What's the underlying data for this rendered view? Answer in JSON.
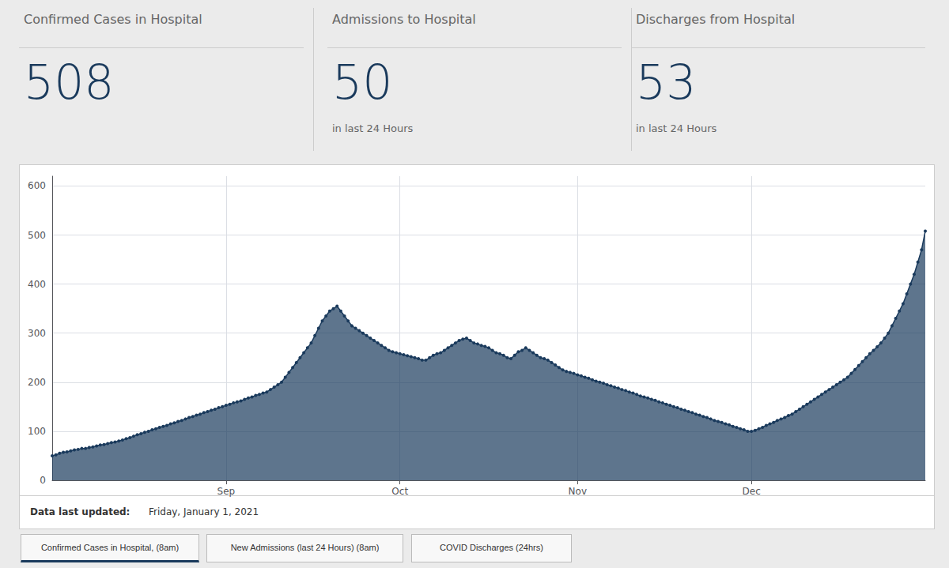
{
  "chart_data": {
    "type": "area",
    "color": "#1a3a5c",
    "marker": "circle",
    "grid": true,
    "ylim": [
      0,
      620
    ],
    "yticks": [
      0,
      100,
      200,
      300,
      400,
      500,
      600
    ],
    "categories": [
      null,
      null,
      null,
      null,
      null,
      null,
      null,
      null,
      null,
      null,
      null,
      null,
      null,
      null,
      null,
      null,
      null,
      null,
      null,
      null,
      null,
      null,
      null,
      null,
      null,
      null,
      null,
      null,
      null,
      null,
      null,
      null,
      null,
      null,
      null,
      null,
      null,
      null,
      null,
      null,
      null,
      null,
      null,
      null,
      null,
      null,
      null,
      "Sep",
      null,
      null,
      null,
      null,
      null,
      null,
      null,
      null,
      null,
      null,
      null,
      null,
      null,
      null,
      null,
      null,
      null,
      null,
      null,
      null,
      null,
      null,
      null,
      null,
      null,
      null,
      null,
      null,
      null,
      null,
      null,
      null,
      null,
      null,
      null,
      null,
      null,
      null,
      null,
      null,
      null,
      null,
      null,
      null,
      null,
      null,
      "Oct",
      null,
      null,
      null,
      null,
      null,
      null,
      null,
      null,
      null,
      null,
      null,
      null,
      null,
      null,
      null,
      null,
      null,
      null,
      null,
      null,
      null,
      null,
      null,
      null,
      null,
      null,
      null,
      null,
      null,
      null,
      null,
      null,
      null,
      null,
      null,
      null,
      null,
      null,
      null,
      null,
      null,
      null,
      null,
      null,
      null,
      null,
      null,
      "Nov",
      null,
      null,
      null,
      null,
      null,
      null,
      null,
      null,
      null,
      null,
      null,
      null,
      null,
      null,
      null,
      null,
      null,
      null,
      null,
      null,
      null,
      null,
      null,
      null,
      null,
      null,
      null,
      null,
      null,
      null,
      null,
      null,
      null,
      null,
      null,
      null,
      null,
      null,
      null,
      null,
      null,
      null,
      null,
      null,
      null,
      null,
      "Dec",
      null,
      null,
      null,
      null,
      null,
      null,
      null,
      null,
      null,
      null,
      null,
      null,
      null,
      null,
      null,
      null,
      null,
      null,
      null,
      null,
      null,
      null,
      null,
      null,
      null,
      null,
      null,
      null,
      null,
      null,
      null,
      null,
      null,
      null,
      null,
      null,
      null,
      null,
      null,
      null,
      null,
      null,
      null,
      null,
      null,
      null,
      null
    ],
    "values": [
      50,
      52,
      55,
      57,
      58,
      60,
      62,
      63,
      65,
      65,
      67,
      68,
      70,
      72,
      73,
      75,
      77,
      78,
      80,
      82,
      85,
      87,
      90,
      93,
      95,
      98,
      100,
      103,
      105,
      108,
      110,
      112,
      115,
      117,
      120,
      122,
      125,
      128,
      130,
      133,
      135,
      138,
      140,
      143,
      145,
      148,
      150,
      153,
      155,
      158,
      160,
      162,
      165,
      168,
      170,
      173,
      175,
      178,
      180,
      185,
      190,
      195,
      200,
      210,
      220,
      230,
      240,
      250,
      260,
      270,
      280,
      295,
      310,
      325,
      335,
      345,
      350,
      355,
      345,
      335,
      325,
      315,
      310,
      305,
      300,
      295,
      290,
      285,
      280,
      275,
      270,
      265,
      262,
      260,
      258,
      256,
      254,
      252,
      250,
      248,
      245,
      245,
      250,
      255,
      258,
      260,
      265,
      270,
      275,
      280,
      285,
      288,
      290,
      285,
      280,
      278,
      275,
      273,
      270,
      265,
      260,
      258,
      255,
      250,
      248,
      255,
      262,
      265,
      270,
      265,
      260,
      255,
      250,
      248,
      245,
      240,
      235,
      230,
      225,
      222,
      220,
      218,
      215,
      213,
      210,
      208,
      205,
      202,
      200,
      198,
      195,
      193,
      190,
      188,
      185,
      183,
      180,
      178,
      175,
      172,
      170,
      168,
      165,
      163,
      160,
      158,
      155,
      153,
      150,
      148,
      145,
      143,
      140,
      138,
      135,
      133,
      130,
      128,
      125,
      122,
      120,
      118,
      115,
      113,
      110,
      108,
      105,
      103,
      100,
      100,
      102,
      105,
      108,
      112,
      115,
      118,
      122,
      125,
      128,
      132,
      135,
      140,
      145,
      150,
      155,
      160,
      165,
      170,
      175,
      180,
      185,
      190,
      195,
      200,
      205,
      210,
      218,
      226,
      234,
      242,
      250,
      258,
      265,
      272,
      280,
      290,
      300,
      315,
      330,
      345,
      360,
      380,
      400,
      420,
      445,
      470,
      508
    ],
    "annotations": [
      [
        "Confirmed Cases in Hospital",
        "508"
      ],
      [
        "Admissions to Hospital",
        "50",
        "in last 24 Hours"
      ],
      [
        "Discharges from Hospital",
        "53",
        "in last 24 Hours"
      ],
      [
        "Data last updated:",
        "Friday, January 1, 2021"
      ],
      [
        "Confirmed Cases in Hospital, (8am)",
        "New Admissions (last 24 Hours) (8am)",
        "COVID Discharges (24hrs)"
      ]
    ]
  }
}
